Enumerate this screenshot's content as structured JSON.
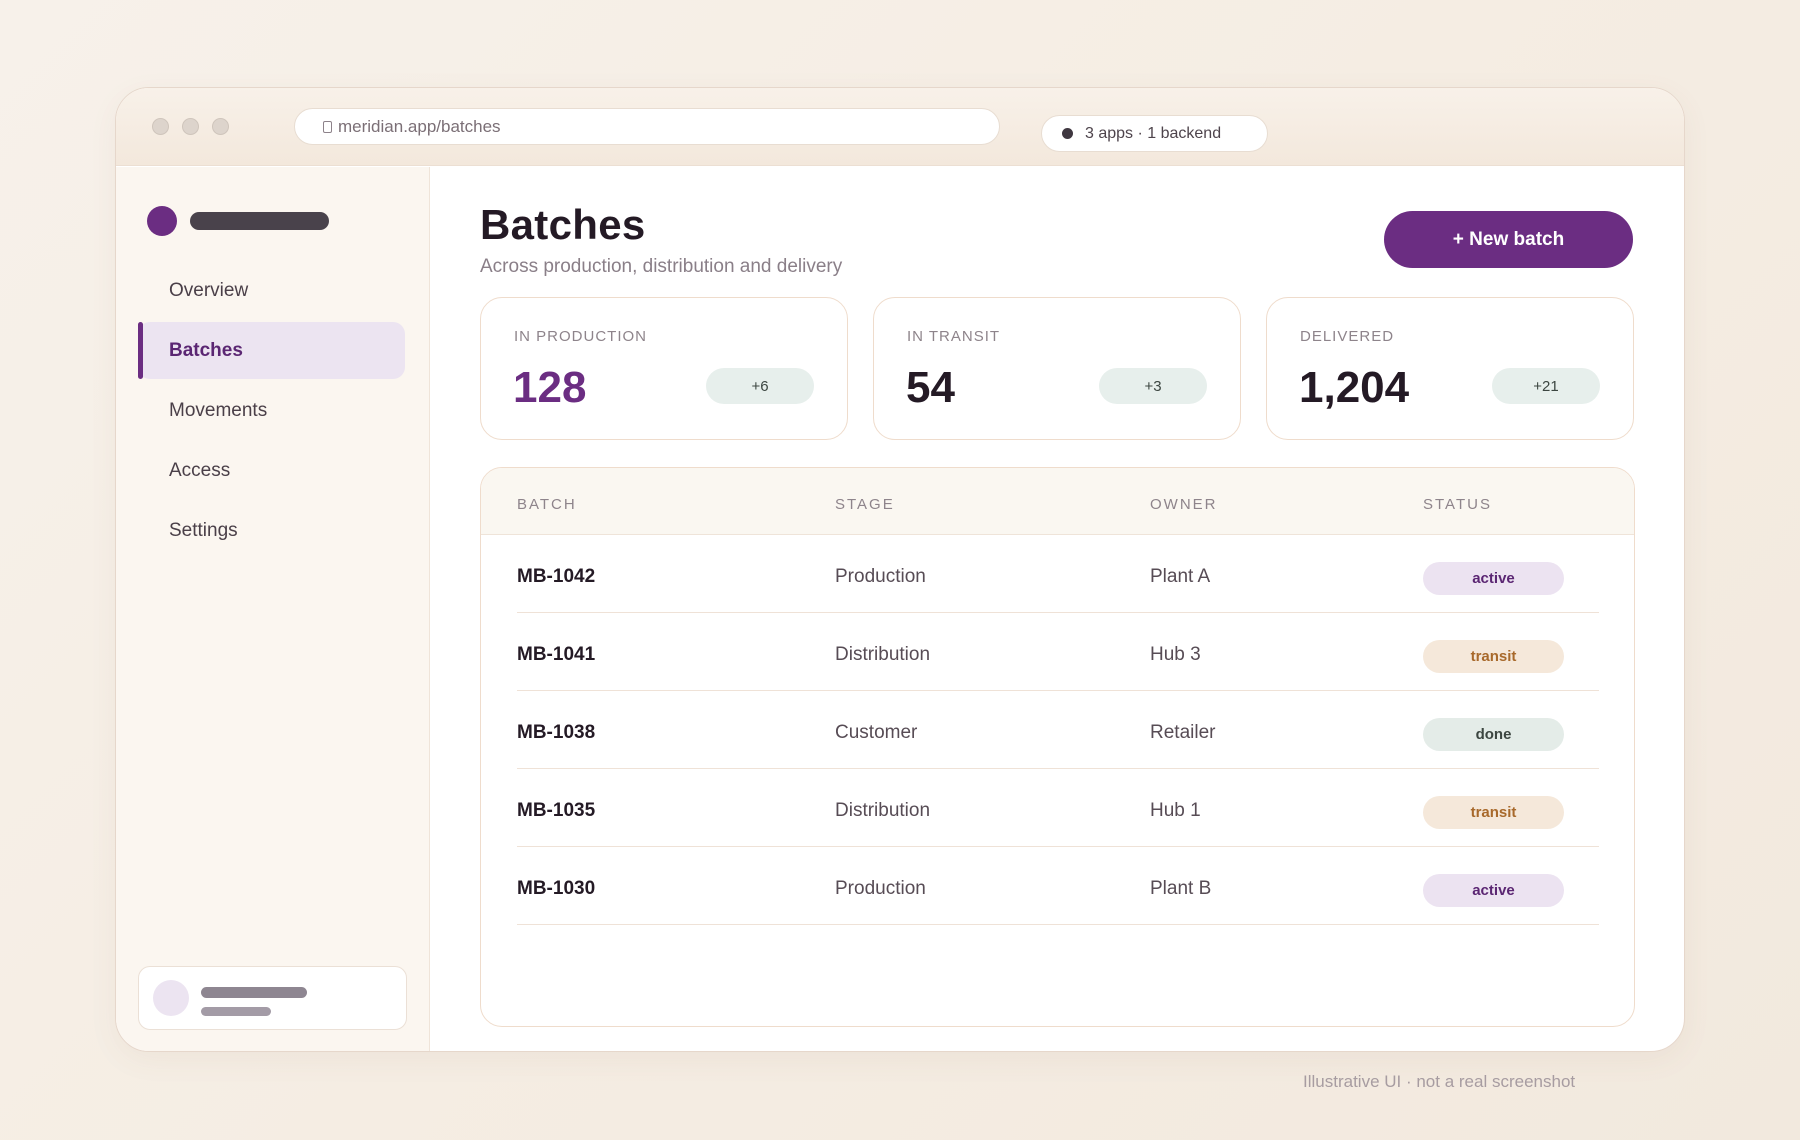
{
  "url": "meridian.app/batches",
  "env_badge": "3 apps · 1 backend",
  "nav": [
    "Overview",
    "Batches",
    "Movements",
    "Access",
    "Settings"
  ],
  "page": {
    "title": "Batches",
    "subtitle": "Across production, distribution and delivery",
    "new_button": "+ New batch"
  },
  "stats": [
    {
      "label": "IN PRODUCTION",
      "value": "128",
      "delta": "+6"
    },
    {
      "label": "IN TRANSIT",
      "value": "54",
      "delta": "+3"
    },
    {
      "label": "DELIVERED",
      "value": "1,204",
      "delta": "+21"
    }
  ],
  "table": {
    "headers": [
      "BATCH",
      "STAGE",
      "OWNER",
      "STATUS"
    ],
    "rows": [
      {
        "batch": "MB-1042",
        "stage": "Production",
        "owner": "Plant A",
        "status": "active"
      },
      {
        "batch": "MB-1041",
        "stage": "Distribution",
        "owner": "Hub 3",
        "status": "transit"
      },
      {
        "batch": "MB-1038",
        "stage": "Customer",
        "owner": "Retailer",
        "status": "done"
      },
      {
        "batch": "MB-1035",
        "stage": "Distribution",
        "owner": "Hub 1",
        "status": "transit"
      },
      {
        "batch": "MB-1030",
        "stage": "Production",
        "owner": "Plant B",
        "status": "active"
      }
    ]
  },
  "footnote": "Illustrative UI · not a real screenshot",
  "colors": {
    "accent": "#6b2d82",
    "active_badge": "#ece3f1",
    "transit_badge": "#f5e8da",
    "done_badge": "#e4ece8"
  }
}
